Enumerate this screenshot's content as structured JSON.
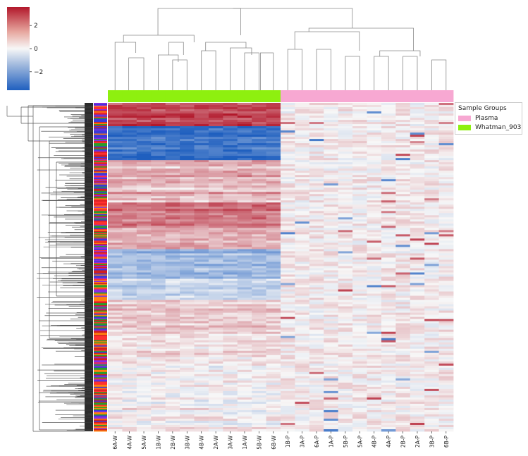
{
  "chart_data": {
    "type": "heatmap",
    "title": "",
    "colorbar": {
      "ticks": [
        2,
        0,
        -2
      ],
      "tick_labels": [
        "2",
        "0",
        "−2"
      ],
      "range": [
        -3.6,
        3.6
      ],
      "colors": {
        "low": "#1f5fbf",
        "mid": "#f7f7f7",
        "high": "#b2182b"
      }
    },
    "columns": [
      "6A-W",
      "4A-W",
      "5A-W",
      "1B-W",
      "2B-W",
      "3B-W",
      "4B-W",
      "2A-W",
      "3A-W",
      "1A-W",
      "5B-W",
      "6B-W",
      "1B-P",
      "3A-P",
      "6A-P",
      "1A-P",
      "5B-P",
      "5A-P",
      "4B-P",
      "4A-P",
      "2B-P",
      "2A-P",
      "3B-P",
      "6B-P"
    ],
    "column_groups": [
      "Whatman_903",
      "Whatman_903",
      "Whatman_903",
      "Whatman_903",
      "Whatman_903",
      "Whatman_903",
      "Whatman_903",
      "Whatman_903",
      "Whatman_903",
      "Whatman_903",
      "Whatman_903",
      "Whatman_903",
      "Plasma",
      "Plasma",
      "Plasma",
      "Plasma",
      "Plasma",
      "Plasma",
      "Plasma",
      "Plasma",
      "Plasma",
      "Plasma",
      "Plasma",
      "Plasma"
    ],
    "legend": {
      "title": "Sample Groups",
      "placement": "right",
      "entries": [
        {
          "label": "Plasma",
          "color": "#f7a8d2"
        },
        {
          "label": "Whatman_903",
          "color": "#8ef00f"
        }
      ]
    },
    "row_color_palette": [
      "#d02020",
      "#2a9d2a",
      "#8a2be2",
      "#ff7f0e",
      "#3a3ad8",
      "#ff3030"
    ]
  }
}
